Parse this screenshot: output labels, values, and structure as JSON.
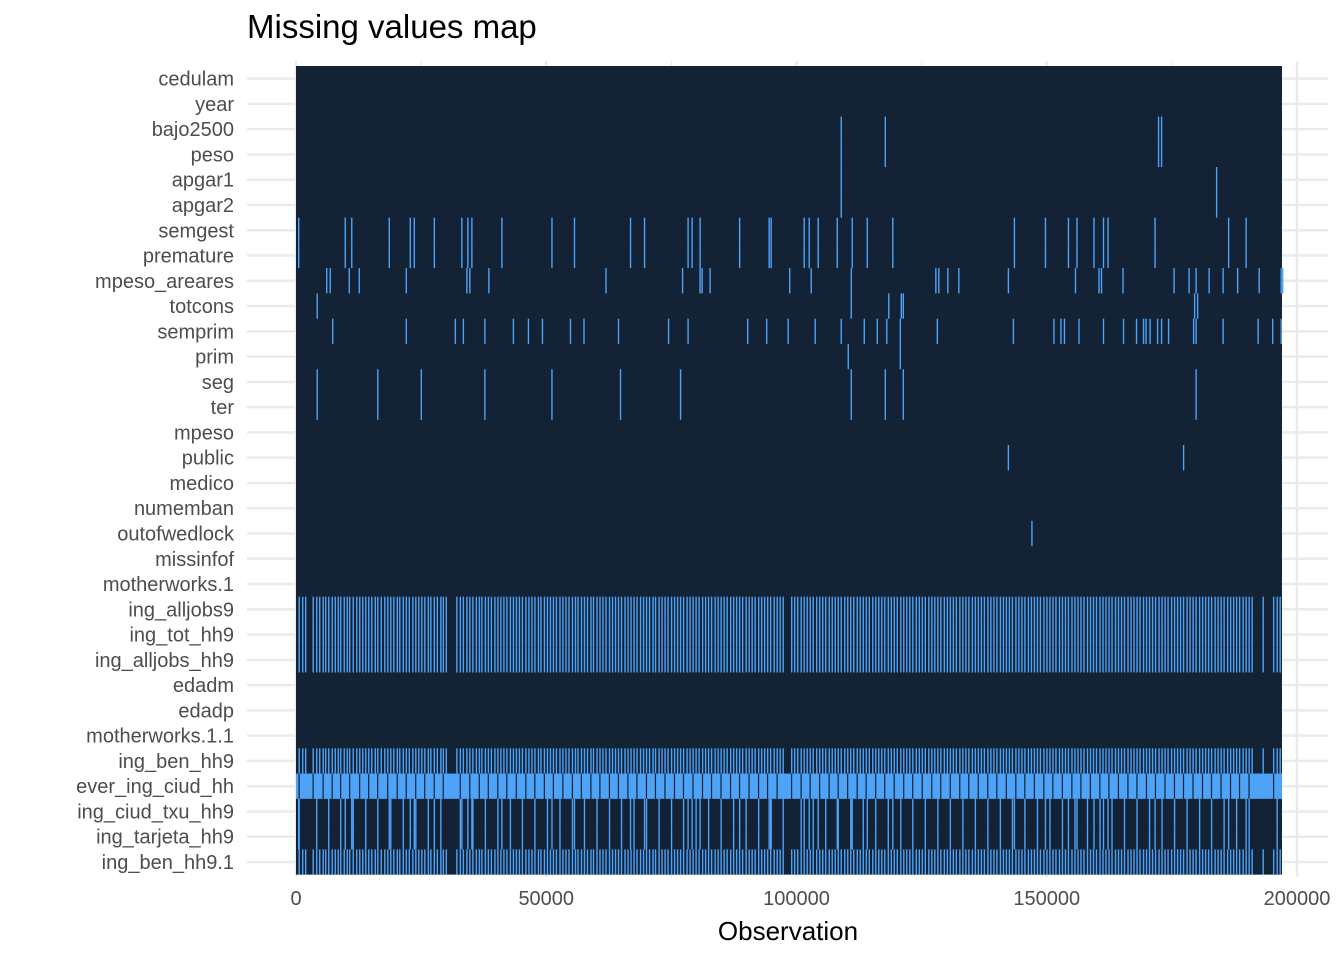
{
  "chart_data": {
    "type": "heatmap",
    "title": "Missing values map",
    "xlabel": "Observation",
    "ylabel": "",
    "xlim": [
      0,
      197000
    ],
    "x_ticks": [
      0,
      50000,
      100000,
      150000,
      200000
    ],
    "x_tick_labels": [
      "0",
      "50000",
      "100000",
      "150000",
      "200000"
    ],
    "grid": true,
    "colors": {
      "present": "#132235",
      "missing": "#4da3f7",
      "grid": "#ebebeb",
      "tick_text": "#4d4d4d"
    },
    "variables": [
      "cedulam",
      "year",
      "bajo2500",
      "peso",
      "apgar1",
      "apgar2",
      "semgest",
      "premature",
      "mpeso_areares",
      "totcons",
      "semprim",
      "prim",
      "seg",
      "ter",
      "mpeso",
      "public",
      "medico",
      "numemban",
      "outofwedlock",
      "missinfof",
      "motherworks.1",
      "ing_alljobs9",
      "ing_tot_hh9",
      "ing_alljobs_hh9",
      "edadm",
      "edadp",
      "motherworks.1.1",
      "ing_ben_hh9",
      "ever_ing_ciud_hh",
      "ing_ciud_txu_hh9",
      "ing_tarjeta_hh9",
      "ing_ben_hh9.1"
    ],
    "missing_observations": {
      "bajo2500": [
        108800,
        117600,
        172200,
        172800
      ],
      "peso": [
        108800,
        117600,
        172200,
        172800
      ],
      "apgar1": [
        108800,
        183800
      ],
      "apgar2": [
        108800,
        183800
      ],
      "semgest": [
        400,
        9700,
        11000,
        18500,
        22700,
        23500,
        27500,
        33000,
        34200,
        35000,
        41000,
        51000,
        55500,
        66700,
        69500,
        78200,
        79000,
        80600,
        88500,
        94400,
        94800,
        101400,
        102400,
        104200,
        108000,
        111000,
        114000,
        119100,
        143400,
        149600,
        154200,
        155900,
        159300,
        161200,
        162100,
        171500,
        186200,
        189700
      ],
      "premature": [
        400,
        9700,
        11000,
        18500,
        22700,
        23500,
        27500,
        33000,
        34200,
        35000,
        41000,
        51000,
        55500,
        66700,
        69500,
        78200,
        79000,
        80600,
        88500,
        94400,
        94800,
        101400,
        102400,
        104200,
        108000,
        111000,
        114000,
        119100,
        143400,
        149600,
        154200,
        155900,
        159300,
        161200,
        162100,
        171500,
        186200,
        189700
      ],
      "mpeso_areares": [
        6000,
        6700,
        10500,
        12500,
        21900,
        34000,
        34600,
        38400,
        61800,
        77100,
        80600,
        81000,
        82600,
        98500,
        102800,
        110800,
        127700,
        128300,
        130100,
        132300,
        142200,
        155600,
        160300,
        160800,
        165100,
        175300,
        178300,
        179700,
        182300,
        185100,
        188000,
        192300,
        196700,
        197000
      ],
      "totcons": [
        4100,
        110800,
        118300,
        120800,
        121200,
        179400,
        180000
      ],
      "semprim": [
        7200,
        21900,
        31700,
        33300,
        37600,
        43300,
        46300,
        49100,
        54700,
        57400,
        64300,
        74300,
        78200,
        90100,
        93900,
        98200,
        103600,
        108800,
        113400,
        116000,
        117900,
        120600,
        128000,
        143200,
        151300,
        152700,
        153400,
        156300,
        161200,
        165200,
        167800,
        169200,
        169700,
        170500,
        172000,
        172800,
        174200,
        179200,
        179700,
        185100,
        192100,
        195000,
        196700
      ],
      "prim": [
        110200,
        120600
      ],
      "seg": [
        4100,
        16200,
        24900,
        37600,
        51000,
        64700,
        76700,
        110800,
        117600,
        121200,
        179700
      ],
      "ter": [
        4100,
        16200,
        24900,
        37600,
        51000,
        64700,
        76700,
        110800,
        117600,
        121200,
        179700
      ],
      "public": [
        142200,
        177200
      ],
      "outofwedlock": [
        146900
      ],
      "ing_alljobs9": [
        500,
        1200,
        1800,
        3300,
        4000,
        4600,
        5300,
        5800,
        6400,
        7100,
        7700,
        8300,
        8800,
        9500,
        10100,
        10600,
        11300,
        12000,
        12600,
        13200,
        13800,
        14400,
        15000,
        15700,
        16200,
        16900,
        17600,
        18200,
        18800,
        19400,
        20100,
        20600,
        21300,
        21900,
        22500,
        23200,
        23800,
        24400,
        25000,
        25600,
        26300,
        26800,
        27500,
        28100,
        28800,
        29300,
        29900,
        32000,
        32700,
        33300,
        34000,
        34600,
        35200,
        35900,
        36500,
        37000,
        37700,
        38300,
        38900,
        39600,
        40200,
        40800,
        41400,
        42000,
        42700,
        43300,
        43900,
        44500,
        45100,
        45800,
        46400,
        47000,
        47600,
        48300,
        48800,
        49500,
        50100,
        50700,
        51300,
        51900,
        52600,
        53200,
        53800,
        54400,
        55100,
        55700,
        56200,
        56900,
        57500,
        58100,
        58800,
        59300,
        60000,
        60600,
        61200,
        61800,
        62500,
        63100,
        63700,
        64300,
        64900,
        65600,
        66200,
        66800,
        67400,
        68000,
        68700,
        69300,
        69900,
        70500,
        71200,
        71700,
        72400,
        73000,
        73600,
        74200,
        74900,
        75500,
        76100,
        76700,
        77300,
        78000,
        78600,
        79200,
        79800,
        80400,
        81100,
        81700,
        82300,
        82900,
        83600,
        84200,
        84800,
        85400,
        86000,
        86700,
        87300,
        87900,
        88500,
        89100,
        89800,
        90400,
        91000,
        91600,
        92300,
        92900,
        93500,
        94100,
        94700,
        95400,
        96000,
        96600,
        97200,
        98900,
        99500,
        100100,
        100800,
        101400,
        102000,
        102600,
        103200,
        103900,
        104500,
        105100,
        105700,
        106400,
        107000,
        107600,
        108200,
        108800,
        109500,
        110100,
        110700,
        111300,
        112000,
        112600,
        113200,
        113800,
        114400,
        115100,
        115700,
        116300,
        116900,
        117500,
        118200,
        118800,
        119400,
        120000,
        120700,
        121300,
        121900,
        122500,
        123100,
        123800,
        124400,
        125000,
        125600,
        126300,
        126900,
        127500,
        128100,
        128700,
        129400,
        130000,
        130600,
        131200,
        131800,
        132500,
        133100,
        133700,
        134300,
        135000,
        135600,
        136200,
        136800,
        137400,
        138100,
        138700,
        139300,
        139900,
        140600,
        141200,
        141800,
        142400,
        143000,
        143700,
        144300,
        144900,
        145500,
        146200,
        146800,
        147400,
        148000,
        148600,
        149300,
        149900,
        150500,
        151100,
        151700,
        152400,
        153000,
        153600,
        154200,
        154900,
        155500,
        156100,
        156700,
        157300,
        158000,
        158600,
        159200,
        159800,
        160500,
        161100,
        161700,
        162300,
        162900,
        163600,
        164200,
        164800,
        165400,
        166100,
        166700,
        167300,
        167900,
        168500,
        169200,
        169800,
        170400,
        171000,
        171600,
        172300,
        172900,
        173500,
        174100,
        174800,
        175400,
        176000,
        176600,
        177200,
        177900,
        178500,
        179100,
        179700,
        180400,
        181000,
        181600,
        182200,
        182800,
        183500,
        184100,
        184700,
        185300,
        186000,
        186600,
        187200,
        187800,
        188400,
        189100,
        189700,
        190300,
        190900,
        193100,
        195200,
        195900,
        196500
      ],
      "ing_tot_hh9": "same as ing_alljobs9",
      "ing_alljobs_hh9": "same as ing_alljobs9",
      "ing_ben_hh9": "same as ing_alljobs9",
      "ing_ben_hh9.1": "same as ing_alljobs9",
      "ever_ing_ciud_hh": "missing for nearly all observations, with sparse present gaps",
      "ing_ciud_txu_hh9": "union of semgest and ing_alljobs9 pattern at lower density",
      "ing_tarjeta_hh9": "union of semgest and ing_alljobs9 pattern at lower density"
    }
  }
}
